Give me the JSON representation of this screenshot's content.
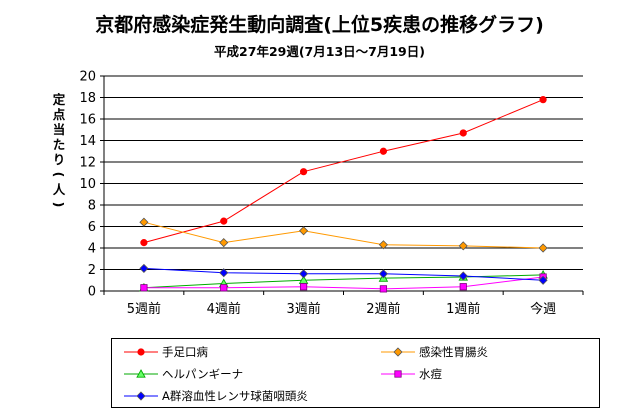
{
  "chart_data": {
    "type": "line",
    "title": "京都府感染症発生動向調査(上位5疾患の推移グラフ)",
    "subtitle": "平成27年29週(7月13日〜7月19日)",
    "ylabel": "定点当たり(人)",
    "xlabel": "",
    "categories": [
      "5週前",
      "4週前",
      "3週前",
      "2週前",
      "1週前",
      "今週"
    ],
    "ylim": [
      0,
      20
    ],
    "yticks": [
      0,
      2,
      4,
      6,
      8,
      10,
      12,
      14,
      16,
      18,
      20
    ],
    "grid": true,
    "legend_position": "bottom",
    "series": [
      {
        "name": "手足口病",
        "color": "#ff0000",
        "marker": "circle",
        "marker_fill": "#ff0000",
        "values": [
          4.5,
          6.5,
          11.1,
          13.0,
          14.7,
          17.8
        ]
      },
      {
        "name": "感染性胃腸炎",
        "color": "#ff9900",
        "marker": "diamond",
        "marker_fill": "#ff9900",
        "values": [
          6.4,
          4.5,
          5.6,
          4.3,
          4.2,
          4.0
        ]
      },
      {
        "name": "ヘルパンギーナ",
        "color": "#00aa00",
        "marker": "triangle",
        "marker_fill": "#66ff66",
        "values": [
          0.3,
          0.7,
          1.0,
          1.2,
          1.3,
          1.5
        ]
      },
      {
        "name": "水痘",
        "color": "#ff00ff",
        "marker": "square",
        "marker_fill": "#ff00ff",
        "values": [
          0.3,
          0.3,
          0.4,
          0.2,
          0.4,
          1.3
        ]
      },
      {
        "name": "A群溶血性レンサ球菌咽頭炎",
        "color": "#0000ff",
        "marker": "diamond",
        "marker_fill": "#0000ff",
        "values": [
          2.1,
          1.7,
          1.6,
          1.6,
          1.4,
          1.0
        ]
      }
    ]
  }
}
